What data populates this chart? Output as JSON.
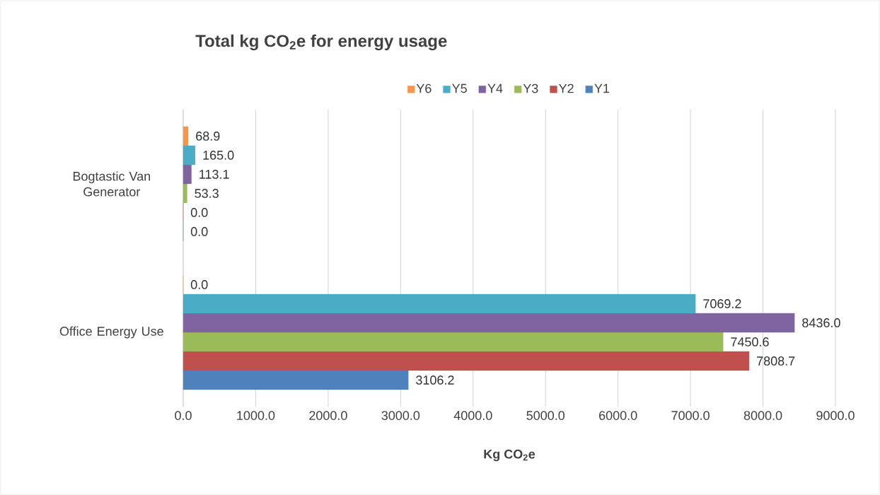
{
  "chart_data": {
    "type": "bar",
    "orientation": "horizontal",
    "title": "Total kg CO$_{2}$e for energy usage",
    "xlabel": "Kg CO$_{2}$e",
    "categories": [
      "Bogtastic Van Generator",
      "Office Energy Use"
    ],
    "series": [
      {
        "name": "Y1",
        "color": "#4f81bd",
        "values": [
          0.0,
          3106.2
        ],
        "value_labels": [
          "0.0",
          "3106.2"
        ]
      },
      {
        "name": "Y2",
        "color": "#c0504d",
        "values": [
          0.0,
          7808.7
        ],
        "value_labels": [
          "0.0",
          "7808.7"
        ]
      },
      {
        "name": "Y3",
        "color": "#9bbb59",
        "values": [
          53.3,
          7450.6
        ],
        "value_labels": [
          "53.3",
          "7450.6"
        ]
      },
      {
        "name": "Y4",
        "color": "#8064a2",
        "values": [
          113.1,
          8436.0
        ],
        "value_labels": [
          "113.1",
          "8436.0"
        ]
      },
      {
        "name": "Y5",
        "color": "#4bacc6",
        "values": [
          165.0,
          7069.2
        ],
        "value_labels": [
          "165.0",
          "7069.2"
        ]
      },
      {
        "name": "Y6",
        "color": "#f79646",
        "values": [
          68.9,
          0.0
        ],
        "value_labels": [
          "68.9",
          "0.0"
        ]
      }
    ],
    "xlim": [
      0,
      9000
    ],
    "xticks": [
      {
        "value": 0,
        "label": "0.0"
      },
      {
        "value": 1000,
        "label": "1000.0"
      },
      {
        "value": 2000,
        "label": "2000.0"
      },
      {
        "value": 3000,
        "label": "3000.0"
      },
      {
        "value": 4000,
        "label": "4000.0"
      },
      {
        "value": 5000,
        "label": "5000.0"
      },
      {
        "value": 6000,
        "label": "6000.0"
      },
      {
        "value": 7000,
        "label": "7000.0"
      },
      {
        "value": 8000,
        "label": "8000.0"
      },
      {
        "value": 9000,
        "label": "9000.0"
      }
    ],
    "grid": "x",
    "legend": "top"
  }
}
